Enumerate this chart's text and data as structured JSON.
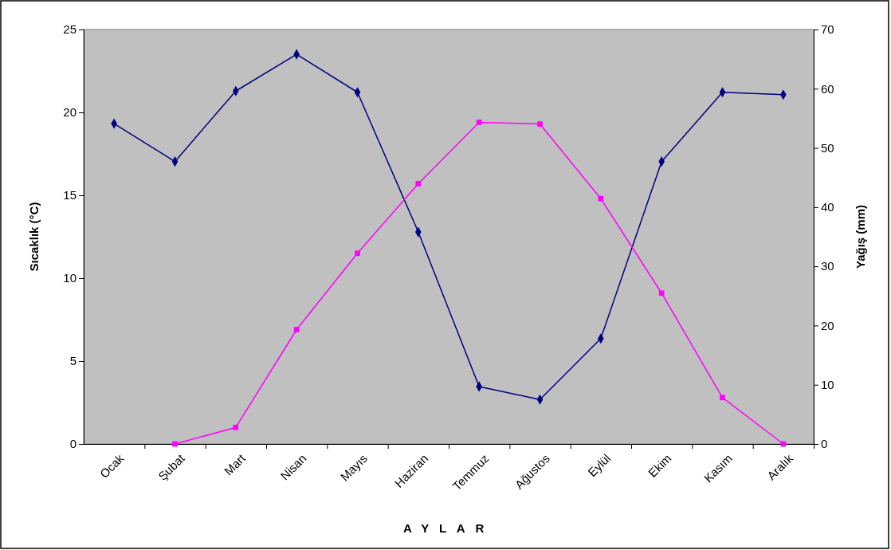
{
  "chart_data": {
    "type": "line",
    "xlabel": "AYLAR",
    "ylabel": "Sıcaklık (°C)",
    "y2label": "Yağış (mm)",
    "categories": [
      "Ocak",
      "Şubat",
      "Mart",
      "Nisan",
      "Mayıs",
      "Haziran",
      "Temmuz",
      "Ağustos",
      "Eylül",
      "Ekim",
      "Kasım",
      "Aralık"
    ],
    "ylim": [
      0,
      25
    ],
    "yticks": [
      0,
      5,
      10,
      15,
      20,
      25
    ],
    "y2lim": [
      0,
      70
    ],
    "y2ticks": [
      0,
      10,
      20,
      30,
      40,
      50,
      60,
      70
    ],
    "series": [
      {
        "color": "#000080",
        "axis": "y2",
        "marker": "diamond",
        "values": [
          54.1,
          47.7,
          59.6,
          65.8,
          59.4,
          35.8,
          9.7,
          7.5,
          17.8,
          47.7,
          59.4,
          59.0
        ]
      },
      {
        "color": "#ff00ff",
        "marker": "square",
        "values": [
          null,
          0,
          1.0,
          6.9,
          11.5,
          15.7,
          19.4,
          19.3,
          14.8,
          9.1,
          2.8,
          0
        ]
      }
    ]
  }
}
